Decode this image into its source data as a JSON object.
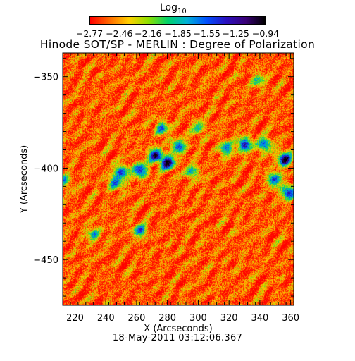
{
  "chart_data": {
    "type": "heatmap",
    "title": "Hinode SOT/SP - MERLIN : Degree of Polarization",
    "xlabel": "X (Arcseconds)",
    "ylabel": "Y (Arcseconds)",
    "xlim": [
      212,
      362
    ],
    "ylim": [
      -475,
      -337
    ],
    "x_ticks": [
      220,
      240,
      260,
      280,
      300,
      320,
      340,
      360
    ],
    "x_tick_labels": [
      "220",
      "240",
      "260",
      "280",
      "300",
      "320",
      "340",
      "360"
    ],
    "y_ticks": [
      -350,
      -400,
      -450
    ],
    "y_tick_labels": [
      "−350",
      "−400",
      "−450"
    ],
    "colorbar": {
      "label_base": "Log",
      "label_sub": "10",
      "range": [
        -2.77,
        -0.94
      ],
      "ticks": [
        -2.77,
        -2.46,
        -2.16,
        -1.85,
        -1.55,
        -1.25,
        -0.94
      ],
      "tick_labels": [
        "−2.77",
        "−2.46",
        "−2.16",
        "−1.85",
        "−1.55",
        "−1.25",
        "−0.94"
      ],
      "colors": [
        "#ff0000",
        "#ff6a00",
        "#ffd000",
        "#8ee000",
        "#00d26a",
        "#00b0d8",
        "#0050ff",
        "#2a10c0",
        "#3a0078",
        "#000000"
      ]
    },
    "features": [
      {
        "x": 280,
        "y": -397,
        "level": 0.85
      },
      {
        "x": 272,
        "y": -393,
        "level": 0.8
      },
      {
        "x": 262,
        "y": -401,
        "level": 0.72
      },
      {
        "x": 250,
        "y": -402,
        "level": 0.62
      },
      {
        "x": 246,
        "y": -408,
        "level": 0.55
      },
      {
        "x": 287,
        "y": -388,
        "level": 0.6
      },
      {
        "x": 276,
        "y": -378,
        "level": 0.5
      },
      {
        "x": 296,
        "y": -402,
        "level": 0.45
      },
      {
        "x": 318,
        "y": -389,
        "level": 0.55
      },
      {
        "x": 330,
        "y": -387,
        "level": 0.72
      },
      {
        "x": 343,
        "y": -387,
        "level": 0.62
      },
      {
        "x": 356,
        "y": -395,
        "level": 0.9
      },
      {
        "x": 358,
        "y": -413,
        "level": 0.7
      },
      {
        "x": 349,
        "y": -406,
        "level": 0.6
      },
      {
        "x": 262,
        "y": -434,
        "level": 0.55
      },
      {
        "x": 232,
        "y": -436,
        "level": 0.4
      },
      {
        "x": 212,
        "y": -407,
        "level": 0.45
      },
      {
        "x": 300,
        "y": -378,
        "level": 0.35
      },
      {
        "x": 339,
        "y": -352,
        "level": 0.35
      }
    ],
    "background_level": 0.08,
    "grid": false
  },
  "date_label": "18-May-2011 03:12:06.367"
}
